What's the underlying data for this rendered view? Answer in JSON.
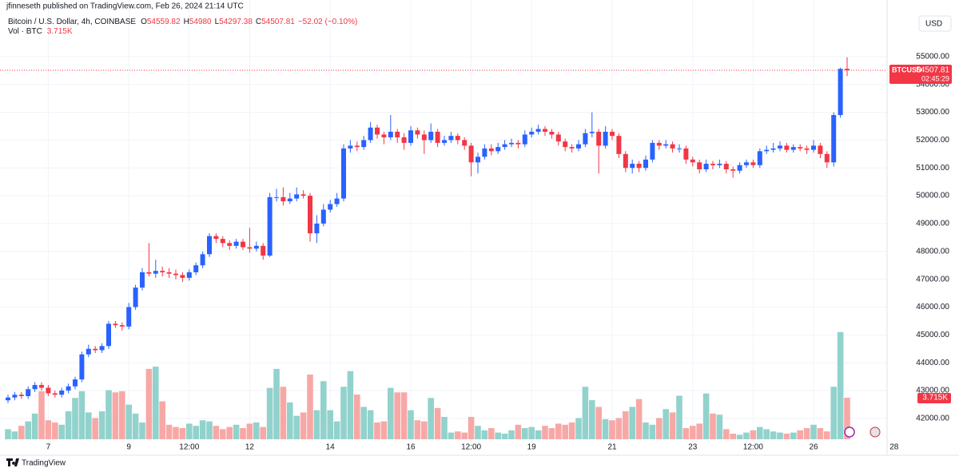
{
  "chart_data": {
    "type": "candlestick",
    "publisher": "jfinneseth published on TradingView.com, Feb 26, 2024 21:14 UTC",
    "symbol_title": "Bitcoin / U.S. Dollar, 4h, COINBASE",
    "ohlc_prefixes": [
      "O",
      "H",
      "L",
      "C"
    ],
    "change_label": "−52.02 (−0.10%)",
    "volume_title": "Vol · BTC",
    "volume_value_label": "3.715K",
    "currency": "USD",
    "symbol_tag": "BTCUSD",
    "countdown": "02:45:29",
    "brand": "TradingView",
    "up_color": "#2962ff",
    "down_color": "#f23645",
    "volume_up_color": "#92d2cc",
    "volume_down_color": "#f7a8a6",
    "categories": [
      null,
      null,
      null,
      null,
      null,
      null,
      "7",
      null,
      null,
      null,
      null,
      null,
      null,
      null,
      null,
      null,
      null,
      null,
      "9",
      null,
      null,
      null,
      null,
      null,
      null,
      null,
      null,
      "12:00",
      null,
      null,
      null,
      null,
      null,
      null,
      null,
      null,
      "12",
      null,
      null,
      null,
      null,
      null,
      null,
      null,
      null,
      null,
      null,
      null,
      "14",
      null,
      null,
      null,
      null,
      null,
      null,
      null,
      null,
      null,
      null,
      null,
      "16",
      null,
      null,
      null,
      null,
      null,
      null,
      null,
      null,
      "12:00",
      null,
      null,
      null,
      null,
      null,
      null,
      null,
      null,
      "19",
      null,
      null,
      null,
      null,
      null,
      null,
      null,
      null,
      null,
      null,
      null,
      "21",
      null,
      null,
      null,
      null,
      null,
      null,
      null,
      null,
      null,
      null,
      null,
      "23",
      null,
      null,
      null,
      null,
      null,
      null,
      null,
      null,
      "12:00",
      null,
      null,
      null,
      null,
      null,
      null,
      null,
      null,
      "26",
      null,
      null,
      null,
      null,
      null
    ],
    "x_axis_future_labels": [
      "28"
    ],
    "open": [
      42650,
      42750,
      42850,
      42800,
      43050,
      43200,
      43100,
      42900,
      42850,
      43000,
      43150,
      43400,
      44300,
      44500,
      44450,
      44600,
      45400,
      45350,
      45300,
      46000,
      46700,
      47250,
      47200,
      47300,
      47250,
      47200,
      47150,
      47050,
      47250,
      47500,
      47900,
      48550,
      48450,
      48300,
      48200,
      48350,
      48150,
      48100,
      48200,
      47850,
      49950,
      49950,
      49800,
      49900,
      50050,
      50000,
      48650,
      49000,
      49500,
      49700,
      49900,
      51700,
      51800,
      51750,
      52000,
      52450,
      52200,
      52100,
      52300,
      52100,
      51900,
      52350,
      52200,
      52000,
      52300,
      51900,
      52000,
      52150,
      52000,
      51800,
      51200,
      51400,
      51700,
      51600,
      51750,
      51850,
      51900,
      51850,
      52200,
      52300,
      52400,
      52300,
      52200,
      51950,
      51750,
      51700,
      51850,
      52250,
      52300,
      51800,
      52300,
      52150,
      51500,
      51000,
      51150,
      51000,
      51300,
      51900,
      51800,
      51850,
      51700,
      51700,
      51300,
      51200,
      50950,
      51150,
      51100,
      51150,
      50950,
      50900,
      51100,
      51200,
      51100,
      51600,
      51650,
      51700,
      51800,
      51650,
      51750,
      51700,
      51650,
      51800,
      51500,
      51200,
      52900,
      54559.82
    ],
    "high": [
      42850,
      42950,
      42950,
      43150,
      43300,
      43300,
      43200,
      43000,
      43100,
      43250,
      43500,
      44400,
      44650,
      44600,
      44700,
      45500,
      45500,
      45450,
      46150,
      46800,
      47400,
      48300,
      47700,
      47450,
      47400,
      47350,
      47250,
      47350,
      47600,
      48000,
      48650,
      48650,
      48550,
      48400,
      48450,
      48450,
      48850,
      48350,
      48300,
      50100,
      50250,
      50300,
      50100,
      50300,
      50200,
      50100,
      49300,
      49700,
      49850,
      50100,
      51850,
      52000,
      51950,
      52150,
      52650,
      52550,
      52300,
      52900,
      52400,
      52250,
      52500,
      52450,
      52350,
      52600,
      52400,
      52150,
      52300,
      52250,
      52100,
      51900,
      51550,
      51850,
      51850,
      51900,
      52000,
      52050,
      52000,
      52350,
      52450,
      52550,
      52500,
      52400,
      52300,
      52050,
      51850,
      52000,
      52400,
      53000,
      52400,
      52500,
      52400,
      52250,
      51600,
      51300,
      51250,
      51450,
      52000,
      52000,
      52000,
      51950,
      51850,
      51800,
      51400,
      51300,
      51300,
      51250,
      51300,
      51250,
      51050,
      51200,
      51300,
      51300,
      51700,
      51800,
      51900,
      51950,
      51900,
      51850,
      51850,
      51800,
      52000,
      51900,
      51600,
      53000,
      54600,
      54980
    ],
    "low": [
      42550,
      42650,
      42700,
      42700,
      42950,
      43000,
      42800,
      42750,
      42750,
      42900,
      43050,
      43300,
      44200,
      44350,
      44350,
      44500,
      45250,
      45150,
      45200,
      45900,
      46600,
      47100,
      47050,
      47100,
      47050,
      47000,
      46900,
      46950,
      47150,
      47400,
      47800,
      48300,
      48150,
      48050,
      48100,
      48050,
      47950,
      48000,
      47700,
      47800,
      49800,
      49650,
      49700,
      49800,
      49900,
      48350,
      48300,
      48900,
      49400,
      49600,
      49800,
      51550,
      51600,
      51650,
      51900,
      52050,
      51850,
      52000,
      51900,
      51650,
      51800,
      52050,
      51500,
      51900,
      51750,
      51800,
      51900,
      51850,
      51650,
      50700,
      50800,
      51300,
      51450,
      51500,
      51650,
      51750,
      51700,
      51750,
      52100,
      52200,
      52150,
      52050,
      51800,
      51600,
      51550,
      51600,
      51750,
      52100,
      50800,
      51700,
      52000,
      51350,
      50850,
      50800,
      50850,
      50900,
      51200,
      51650,
      51700,
      51550,
      51550,
      51150,
      51050,
      50800,
      50850,
      50950,
      51000,
      50800,
      50650,
      50800,
      51000,
      51000,
      51000,
      51500,
      51550,
      51600,
      51550,
      51550,
      51600,
      51500,
      51550,
      51350,
      51000,
      51050,
      52800,
      54297.38
    ],
    "close": [
      42750,
      42850,
      42800,
      43050,
      43200,
      43100,
      42900,
      42850,
      43000,
      43150,
      43400,
      44300,
      44500,
      44450,
      44600,
      45400,
      45350,
      45300,
      46000,
      46700,
      47250,
      47200,
      47300,
      47250,
      47200,
      47150,
      47050,
      47250,
      47500,
      47900,
      48550,
      48450,
      48300,
      48200,
      48350,
      48150,
      48100,
      48200,
      47850,
      49950,
      49950,
      49800,
      49900,
      50050,
      50000,
      48650,
      49000,
      49500,
      49700,
      49900,
      51700,
      51800,
      51750,
      52000,
      52450,
      52200,
      52100,
      52300,
      52100,
      51900,
      52350,
      52200,
      52000,
      52300,
      51900,
      52000,
      52150,
      52000,
      51800,
      51200,
      51400,
      51700,
      51600,
      51750,
      51850,
      51900,
      51850,
      52200,
      52300,
      52400,
      52300,
      52200,
      51950,
      51750,
      51700,
      51850,
      52250,
      52300,
      51800,
      52300,
      52150,
      51500,
      51000,
      51150,
      51000,
      51300,
      51900,
      51800,
      51850,
      51700,
      51700,
      51300,
      51200,
      50950,
      51150,
      51100,
      51150,
      50950,
      50900,
      51100,
      51200,
      51100,
      51600,
      51650,
      51700,
      51800,
      51650,
      51750,
      51700,
      51650,
      51800,
      51500,
      51200,
      52900,
      54559.82,
      54507.81
    ],
    "volume": [
      0.9,
      0.7,
      1.2,
      1.6,
      2.3,
      4.3,
      1.7,
      1.5,
      1.3,
      2.5,
      3.7,
      4.3,
      2.4,
      1.9,
      2.5,
      4.4,
      4.2,
      4.3,
      3.1,
      2.3,
      1.5,
      6.3,
      6.5,
      3.4,
      1.3,
      1.1,
      1.0,
      1.4,
      1.2,
      1.7,
      1.6,
      1.2,
      0.9,
      1.1,
      1.3,
      1.0,
      1.4,
      1.5,
      1.1,
      4.6,
      6.3,
      4.7,
      3.3,
      2.1,
      2.4,
      5.8,
      2.6,
      5.2,
      2.6,
      1.6,
      4.7,
      6.1,
      4.0,
      2.9,
      2.6,
      1.5,
      1.6,
      4.6,
      4.2,
      4.2,
      2.6,
      1.7,
      1.6,
      3.7,
      2.8,
      2.0,
      0.6,
      0.7,
      0.6,
      2.0,
      1.2,
      0.8,
      1.0,
      0.6,
      0.5,
      0.8,
      1.3,
      1.0,
      1.1,
      0.8,
      1.2,
      1.0,
      1.4,
      1.3,
      1.5,
      1.9,
      4.7,
      3.5,
      2.9,
      1.8,
      1.7,
      1.9,
      2.5,
      2.9,
      3.6,
      1.5,
      1.3,
      1.9,
      2.7,
      2.4,
      3.9,
      1.0,
      1.2,
      1.4,
      4.1,
      2.3,
      2.2,
      0.9,
      0.5,
      0.4,
      0.6,
      0.8,
      1.1,
      0.9,
      0.7,
      0.6,
      0.5,
      0.6,
      0.8,
      1.0,
      1.3,
      1.0,
      0.7,
      4.7,
      9.6,
      3.715
    ],
    "ylim": [
      41250,
      56460
    ],
    "yticks": [
      {
        "value": 42000,
        "label": "42000.00"
      },
      {
        "value": 43000,
        "label": "43000.00"
      },
      {
        "value": 44000,
        "label": "44000.00"
      },
      {
        "value": 45000,
        "label": "45000.00"
      },
      {
        "value": 46000,
        "label": "46000.00"
      },
      {
        "value": 47000,
        "label": "47000.00"
      },
      {
        "value": 48000,
        "label": "48000.00"
      },
      {
        "value": 49000,
        "label": "49000.00"
      },
      {
        "value": 50000,
        "label": "50000.00"
      },
      {
        "value": 51000,
        "label": "51000.00"
      },
      {
        "value": 52000,
        "label": "52000.00"
      },
      {
        "value": 53000,
        "label": "53000.00"
      },
      {
        "value": 54000,
        "label": "54000.00"
      },
      {
        "value": 55000,
        "label": "55000.00"
      }
    ],
    "y2lim": [
      0,
      37.9
    ],
    "grid": true
  }
}
